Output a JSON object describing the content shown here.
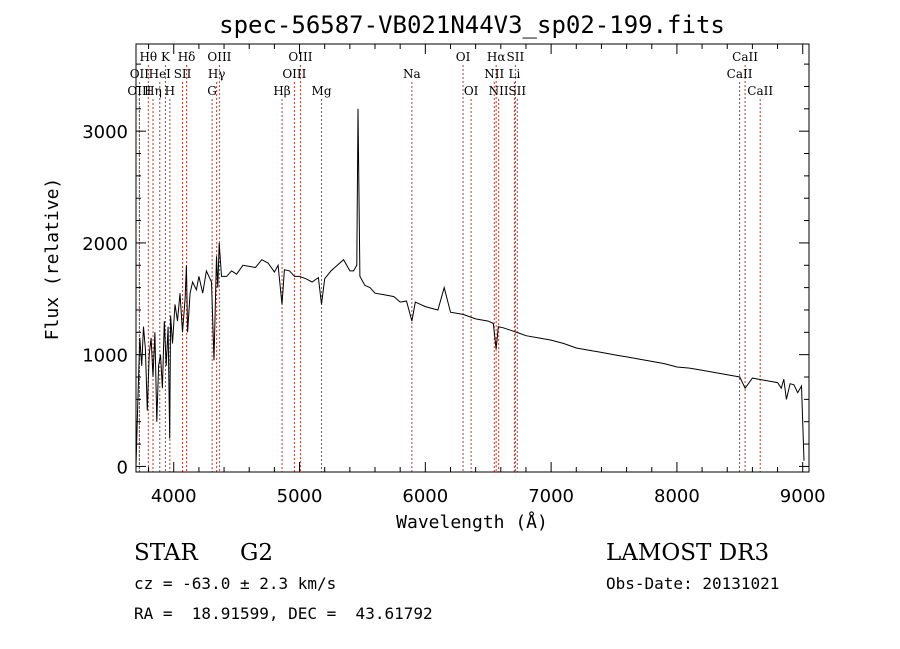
{
  "chart_data": {
    "type": "line",
    "title": "spec-56587-VB021N44V3_sp02-199.fits",
    "xlabel": "Wavelength (Å)",
    "ylabel": "Flux (relative)",
    "xlim": [
      3700,
      9050
    ],
    "ylim": [
      -50,
      3780
    ],
    "xticks": [
      4000,
      5000,
      6000,
      7000,
      8000,
      9000
    ],
    "yticks": [
      0,
      1000,
      2000,
      3000
    ],
    "grid": false,
    "series": [
      {
        "name": "spectrum",
        "x": [
          3700,
          3715,
          3730,
          3745,
          3760,
          3775,
          3790,
          3805,
          3820,
          3835,
          3850,
          3865,
          3880,
          3895,
          3910,
          3925,
          3940,
          3955,
          3968,
          3975,
          3990,
          4010,
          4030,
          4050,
          4070,
          4090,
          4101,
          4110,
          4130,
          4150,
          4180,
          4200,
          4230,
          4260,
          4300,
          4320,
          4340,
          4350,
          4361,
          4380,
          4420,
          4460,
          4500,
          4550,
          4600,
          4650,
          4700,
          4750,
          4800,
          4830,
          4861,
          4880,
          4920,
          4960,
          5000,
          5050,
          5100,
          5150,
          5175,
          5200,
          5250,
          5300,
          5350,
          5400,
          5430,
          5455,
          5465,
          5480,
          5520,
          5560,
          5600,
          5650,
          5700,
          5750,
          5800,
          5850,
          5893,
          5920,
          6000,
          6100,
          6150,
          6200,
          6300,
          6400,
          6500,
          6540,
          6563,
          6580,
          6620,
          6700,
          6750,
          6800,
          6900,
          7000,
          7100,
          7200,
          7300,
          7400,
          7500,
          7600,
          7700,
          7800,
          7900,
          8000,
          8100,
          8200,
          8300,
          8400,
          8500,
          8542,
          8600,
          8700,
          8800,
          8830,
          8850,
          8870,
          8900,
          8930,
          8960,
          8990,
          9000,
          9010
        ],
        "values": [
          0,
          600,
          1150,
          900,
          1250,
          1050,
          500,
          1000,
          1150,
          800,
          1200,
          400,
          900,
          1000,
          700,
          1300,
          900,
          1250,
          250,
          1350,
          1100,
          1450,
          1300,
          1550,
          1200,
          1500,
          1800,
          1200,
          1550,
          1650,
          1580,
          1700,
          1550,
          1750,
          1650,
          950,
          1880,
          1600,
          2000,
          1700,
          1700,
          1750,
          1720,
          1800,
          1790,
          1780,
          1850,
          1820,
          1740,
          1800,
          1450,
          1760,
          1750,
          1700,
          1700,
          1680,
          1650,
          1690,
          1450,
          1680,
          1750,
          1800,
          1850,
          1750,
          1750,
          1800,
          3200,
          1700,
          1620,
          1600,
          1550,
          1540,
          1530,
          1520,
          1470,
          1480,
          1300,
          1470,
          1430,
          1400,
          1600,
          1380,
          1360,
          1320,
          1300,
          1280,
          1050,
          1250,
          1240,
          1210,
          1190,
          1170,
          1150,
          1130,
          1100,
          1060,
          1040,
          1020,
          1000,
          980,
          960,
          940,
          920,
          890,
          880,
          860,
          840,
          820,
          800,
          700,
          790,
          770,
          750,
          700,
          780,
          600,
          740,
          730,
          660,
          720,
          400,
          50
        ]
      }
    ],
    "lines": [
      {
        "label": "Hθ",
        "x": 3798,
        "row": 1
      },
      {
        "label": "OII",
        "x": 3727,
        "row": 2
      },
      {
        "label": "OIII",
        "x": 3727,
        "row": 3
      },
      {
        "label": "K",
        "x": 3934,
        "row": 1
      },
      {
        "label": "HeI",
        "x": 3889,
        "row": 2
      },
      {
        "label": "Hη",
        "x": 3835,
        "row": 3
      },
      {
        "label": "Hδ",
        "x": 4102,
        "row": 1
      },
      {
        "label": "SII",
        "x": 4070,
        "row": 2
      },
      {
        "label": "H",
        "x": 3969,
        "row": 3
      },
      {
        "label": "OIII",
        "x": 4363,
        "row": 1
      },
      {
        "label": "Hγ",
        "x": 4341,
        "row": 2
      },
      {
        "label": "G",
        "x": 4305,
        "row": 3
      },
      {
        "label": "OIII",
        "x": 5007,
        "row": 1
      },
      {
        "label": "OIII",
        "x": 4959,
        "row": 2
      },
      {
        "label": "Hβ",
        "x": 4861,
        "row": 3
      },
      {
        "label": "Mg",
        "x": 5175,
        "row": 3
      },
      {
        "label": "Na",
        "x": 5893,
        "row": 2
      },
      {
        "label": "OI",
        "x": 6300,
        "row": 1
      },
      {
        "label": "OI",
        "x": 6364,
        "row": 3
      },
      {
        "label": "Hα",
        "x": 6563,
        "row": 1
      },
      {
        "label": "SII",
        "x": 6716,
        "row": 1
      },
      {
        "label": "NII",
        "x": 6548,
        "row": 2
      },
      {
        "label": "Li",
        "x": 6708,
        "row": 2
      },
      {
        "label": "NII",
        "x": 6583,
        "row": 3
      },
      {
        "label": "SII",
        "x": 6731,
        "row": 3
      },
      {
        "label": "CaII",
        "x": 8542,
        "row": 1
      },
      {
        "label": "CaII",
        "x": 8498,
        "row": 2
      },
      {
        "label": "CaII",
        "x": 8662,
        "row": 3
      }
    ]
  },
  "info": {
    "object_class": "STAR",
    "subclass": "G2",
    "survey": "LAMOST DR3",
    "redshift": "cz = -63.0 ± 2.3 km/s",
    "obs_date": "Obs-Date: 20131021",
    "coords": "RA =  18.91599, DEC =  43.61792"
  },
  "colors": {
    "line_markers": "#c0392b",
    "spectrum": "#000000",
    "axes": "#000000"
  }
}
